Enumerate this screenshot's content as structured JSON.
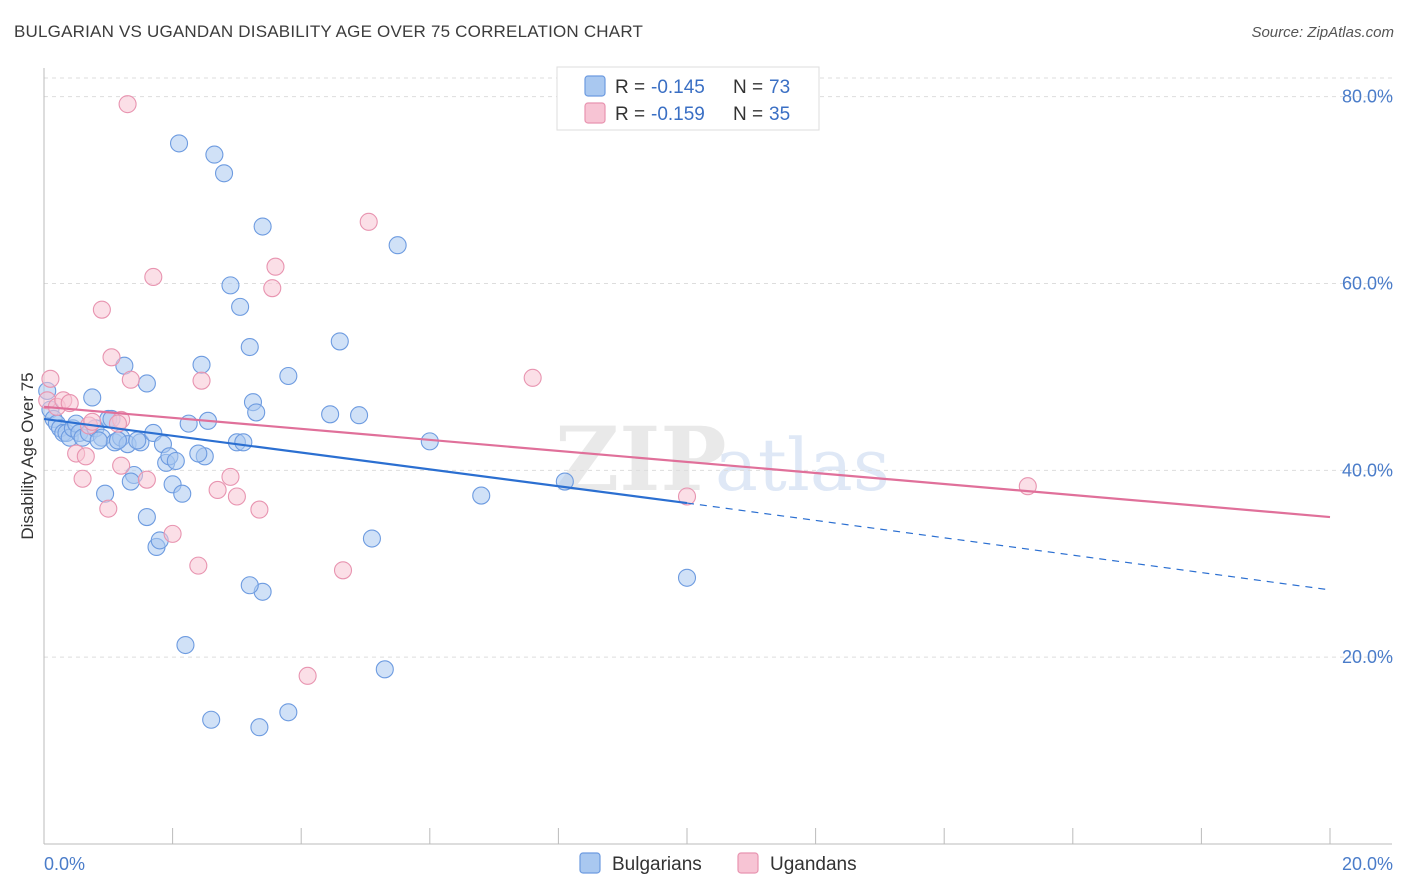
{
  "title": "BULGARIAN VS UGANDAN DISABILITY AGE OVER 75 CORRELATION CHART",
  "source": "Source: ZipAtlas.com",
  "watermark": {
    "zip": "ZIP",
    "atlas": "atlas"
  },
  "colors": {
    "bulgarian_fill": "#a9c8f0",
    "bulgarian_stroke": "#6d9be0",
    "bulgarian_line": "#2b6fd1",
    "ugandan_fill": "#f7c4d4",
    "ugandan_stroke": "#e894b0",
    "ugandan_line": "#e0709a",
    "grid": "#dddddd",
    "tick_label": "#4a7cc9"
  },
  "legend": {
    "rows": [
      {
        "r_label": "R = ",
        "r_value": "-0.145",
        "n_label": "N = ",
        "n_value": "73"
      },
      {
        "r_label": "R = ",
        "r_value": "-0.159",
        "n_label": "N = ",
        "n_value": "35"
      }
    ]
  },
  "bottom_legend": {
    "bulgarians": "Bulgarians",
    "ugandans": "Ugandans"
  },
  "chart_data": {
    "type": "scatter",
    "title": "BULGARIAN VS UGANDAN DISABILITY AGE OVER 75 CORRELATION CHART",
    "xlabel": "",
    "ylabel": "Disability Age Over 75",
    "xlim": [
      0,
      20
    ],
    "ylim": [
      0,
      82
    ],
    "x_tick_labels": [
      {
        "value": 0,
        "label": "0.0%"
      },
      {
        "value": 20,
        "label": "20.0%"
      }
    ],
    "y_tick_labels": [
      {
        "value": 20,
        "label": "20.0%"
      },
      {
        "value": 40,
        "label": "40.0%"
      },
      {
        "value": 60,
        "label": "60.0%"
      },
      {
        "value": 80,
        "label": "80.0%"
      }
    ],
    "series": [
      {
        "name": "Bulgarians",
        "r": -0.145,
        "n": 73,
        "trend": {
          "x0": 0,
          "y0": 45.5,
          "x1": 10,
          "y1": 36.5,
          "dash_x1": 20,
          "dash_y1": 27.2
        },
        "points": [
          [
            0.05,
            48.5
          ],
          [
            0.1,
            46.5
          ],
          [
            0.15,
            45.5
          ],
          [
            0.2,
            45
          ],
          [
            0.25,
            44.5
          ],
          [
            0.3,
            44
          ],
          [
            0.35,
            44
          ],
          [
            0.4,
            43.5
          ],
          [
            0.45,
            44.5
          ],
          [
            0.5,
            45
          ],
          [
            0.55,
            44
          ],
          [
            0.6,
            43.5
          ],
          [
            0.7,
            44
          ],
          [
            0.75,
            47.8
          ],
          [
            0.8,
            44.5
          ],
          [
            0.9,
            43.5
          ],
          [
            1.0,
            45.5
          ],
          [
            1.1,
            43
          ],
          [
            1.2,
            43.5
          ],
          [
            1.25,
            51.2
          ],
          [
            1.3,
            42.8
          ],
          [
            1.4,
            39.5
          ],
          [
            1.5,
            43
          ],
          [
            1.6,
            49.3
          ],
          [
            1.6,
            35
          ],
          [
            1.7,
            44
          ],
          [
            1.75,
            31.8
          ],
          [
            1.8,
            32.5
          ],
          [
            1.85,
            42.8
          ],
          [
            1.9,
            40.8
          ],
          [
            1.95,
            41.5
          ],
          [
            2.0,
            38.5
          ],
          [
            2.05,
            41
          ],
          [
            2.1,
            75
          ],
          [
            2.15,
            37.5
          ],
          [
            2.2,
            21.3
          ],
          [
            2.25,
            45
          ],
          [
            2.5,
            41.5
          ],
          [
            2.4,
            41.8
          ],
          [
            2.45,
            51.3
          ],
          [
            2.55,
            45.3
          ],
          [
            2.6,
            13.3
          ],
          [
            2.65,
            73.8
          ],
          [
            2.8,
            71.8
          ],
          [
            2.9,
            59.8
          ],
          [
            3.0,
            43
          ],
          [
            3.05,
            57.5
          ],
          [
            3.1,
            43
          ],
          [
            3.2,
            53.2
          ],
          [
            3.25,
            47.3
          ],
          [
            3.3,
            46.2
          ],
          [
            3.35,
            12.5
          ],
          [
            3.4,
            66.1
          ],
          [
            3.4,
            27
          ],
          [
            3.2,
            27.7
          ],
          [
            3.8,
            14.1
          ],
          [
            3.8,
            50.1
          ],
          [
            4.45,
            46
          ],
          [
            4.6,
            53.8
          ],
          [
            4.9,
            45.9
          ],
          [
            5.1,
            32.7
          ],
          [
            5.3,
            18.7
          ],
          [
            5.5,
            64.1
          ],
          [
            6.0,
            43.1
          ],
          [
            6.8,
            37.3
          ],
          [
            8.1,
            38.8
          ],
          [
            10.0,
            28.5
          ],
          [
            1.35,
            38.8
          ],
          [
            0.95,
            37.5
          ],
          [
            1.15,
            43.2
          ],
          [
            0.85,
            43.2
          ],
          [
            1.45,
            43.2
          ],
          [
            1.05,
            45.5
          ]
        ]
      },
      {
        "name": "Ugandans",
        "r": -0.159,
        "n": 35,
        "trend": {
          "x0": 0,
          "y0": 46.8,
          "x1": 20,
          "y1": 35.0
        },
        "points": [
          [
            0.05,
            47.5
          ],
          [
            0.1,
            49.8
          ],
          [
            0.2,
            46.8
          ],
          [
            0.3,
            47.5
          ],
          [
            0.4,
            47.2
          ],
          [
            0.5,
            41.8
          ],
          [
            0.6,
            39.1
          ],
          [
            0.7,
            44.8
          ],
          [
            0.75,
            45.2
          ],
          [
            0.9,
            57.2
          ],
          [
            1.0,
            35.9
          ],
          [
            1.05,
            52.1
          ],
          [
            1.2,
            45.4
          ],
          [
            1.2,
            40.5
          ],
          [
            1.3,
            79.2
          ],
          [
            1.35,
            49.7
          ],
          [
            1.6,
            39
          ],
          [
            1.7,
            60.7
          ],
          [
            2.0,
            33.2
          ],
          [
            2.4,
            29.8
          ],
          [
            2.45,
            49.6
          ],
          [
            2.7,
            37.9
          ],
          [
            2.9,
            39.3
          ],
          [
            3.0,
            37.2
          ],
          [
            3.35,
            35.8
          ],
          [
            3.55,
            59.5
          ],
          [
            3.6,
            61.8
          ],
          [
            4.1,
            18
          ],
          [
            4.65,
            29.3
          ],
          [
            5.05,
            66.6
          ],
          [
            7.6,
            49.9
          ],
          [
            10.0,
            37.2
          ],
          [
            15.3,
            38.3
          ],
          [
            0.65,
            41.5
          ],
          [
            1.15,
            45
          ]
        ]
      }
    ]
  }
}
